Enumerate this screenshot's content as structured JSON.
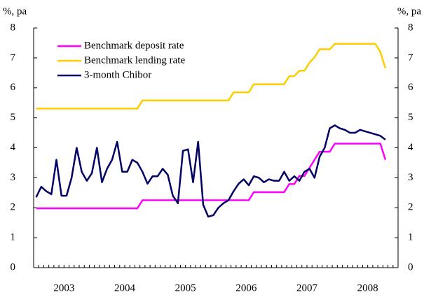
{
  "chart_data": {
    "type": "line",
    "y_label": "%, pa",
    "y2_label": "%, pa",
    "categories": [
      null,
      null,
      null,
      null,
      null,
      null,
      "2003",
      null,
      null,
      null,
      null,
      null,
      null,
      null,
      null,
      null,
      null,
      null,
      "2004",
      null,
      null,
      null,
      null,
      null,
      null,
      null,
      null,
      null,
      null,
      null,
      "2005",
      null,
      null,
      null,
      null,
      null,
      null,
      null,
      null,
      null,
      null,
      null,
      "2006",
      null,
      null,
      null,
      null,
      null,
      null,
      null,
      null,
      null,
      null,
      null,
      "2007",
      null,
      null,
      null,
      null,
      null,
      null,
      null,
      null,
      null,
      null,
      null,
      "2008",
      null,
      null,
      null,
      null,
      null
    ],
    "series": [
      {
        "name": "Benchmark deposit rate",
        "color": "#ff00ff",
        "values": [
          1.98,
          1.98,
          1.98,
          1.98,
          1.98,
          1.98,
          1.98,
          1.98,
          1.98,
          1.98,
          1.98,
          1.98,
          1.98,
          1.98,
          1.98,
          1.98,
          1.98,
          1.98,
          1.98,
          1.98,
          1.98,
          2.25,
          2.25,
          2.25,
          2.25,
          2.25,
          2.25,
          2.25,
          2.25,
          2.25,
          2.25,
          2.25,
          2.25,
          2.25,
          2.25,
          2.25,
          2.25,
          2.25,
          2.25,
          2.25,
          2.25,
          2.25,
          2.25,
          2.52,
          2.52,
          2.52,
          2.52,
          2.52,
          2.52,
          2.52,
          2.79,
          2.79,
          3.06,
          3.06,
          3.33,
          3.6,
          3.87,
          3.87,
          3.87,
          4.14,
          4.14,
          4.14,
          4.14,
          4.14,
          4.14,
          4.14,
          4.14,
          4.14,
          4.14,
          3.6,
          null,
          null
        ]
      },
      {
        "name": "Benchmark lending rate",
        "color": "#ffcc00",
        "values": [
          5.31,
          5.31,
          5.31,
          5.31,
          5.31,
          5.31,
          5.31,
          5.31,
          5.31,
          5.31,
          5.31,
          5.31,
          5.31,
          5.31,
          5.31,
          5.31,
          5.31,
          5.31,
          5.31,
          5.31,
          5.31,
          5.58,
          5.58,
          5.58,
          5.58,
          5.58,
          5.58,
          5.58,
          5.58,
          5.58,
          5.58,
          5.58,
          5.58,
          5.58,
          5.58,
          5.58,
          5.58,
          5.58,
          5.58,
          5.85,
          5.85,
          5.85,
          5.85,
          6.12,
          6.12,
          6.12,
          6.12,
          6.12,
          6.12,
          6.12,
          6.39,
          6.39,
          6.57,
          6.57,
          6.84,
          7.02,
          7.29,
          7.29,
          7.29,
          7.47,
          7.47,
          7.47,
          7.47,
          7.47,
          7.47,
          7.47,
          7.47,
          7.47,
          7.2,
          6.66,
          null,
          null
        ]
      },
      {
        "name": "3-month Chibor",
        "color": "#000066",
        "values": [
          2.35,
          2.7,
          2.55,
          2.45,
          3.6,
          2.4,
          2.4,
          3.0,
          4.0,
          3.2,
          2.9,
          3.15,
          4.0,
          2.85,
          3.3,
          3.6,
          4.2,
          3.2,
          3.2,
          3.6,
          3.5,
          3.2,
          2.8,
          3.05,
          3.05,
          3.3,
          3.1,
          2.4,
          2.15,
          3.9,
          3.95,
          2.85,
          4.2,
          2.1,
          1.7,
          1.75,
          2.0,
          2.15,
          2.25,
          2.55,
          2.8,
          2.95,
          2.75,
          3.05,
          3.0,
          2.85,
          2.95,
          2.9,
          2.9,
          3.2,
          2.9,
          3.05,
          2.9,
          3.2,
          3.3,
          3.0,
          3.7,
          4.0,
          4.65,
          4.75,
          4.65,
          4.6,
          4.5,
          4.5,
          4.6,
          4.55,
          4.5,
          4.45,
          4.4,
          4.27,
          null,
          null
        ]
      }
    ],
    "ylim": [
      0,
      8
    ],
    "yticks": [
      0,
      1,
      2,
      3,
      4,
      5,
      6,
      7,
      8
    ],
    "y2lim": [
      0,
      8
    ],
    "y2ticks": [
      0,
      1,
      2,
      3,
      4,
      5,
      6,
      7,
      8
    ],
    "legend": "upper-left"
  }
}
